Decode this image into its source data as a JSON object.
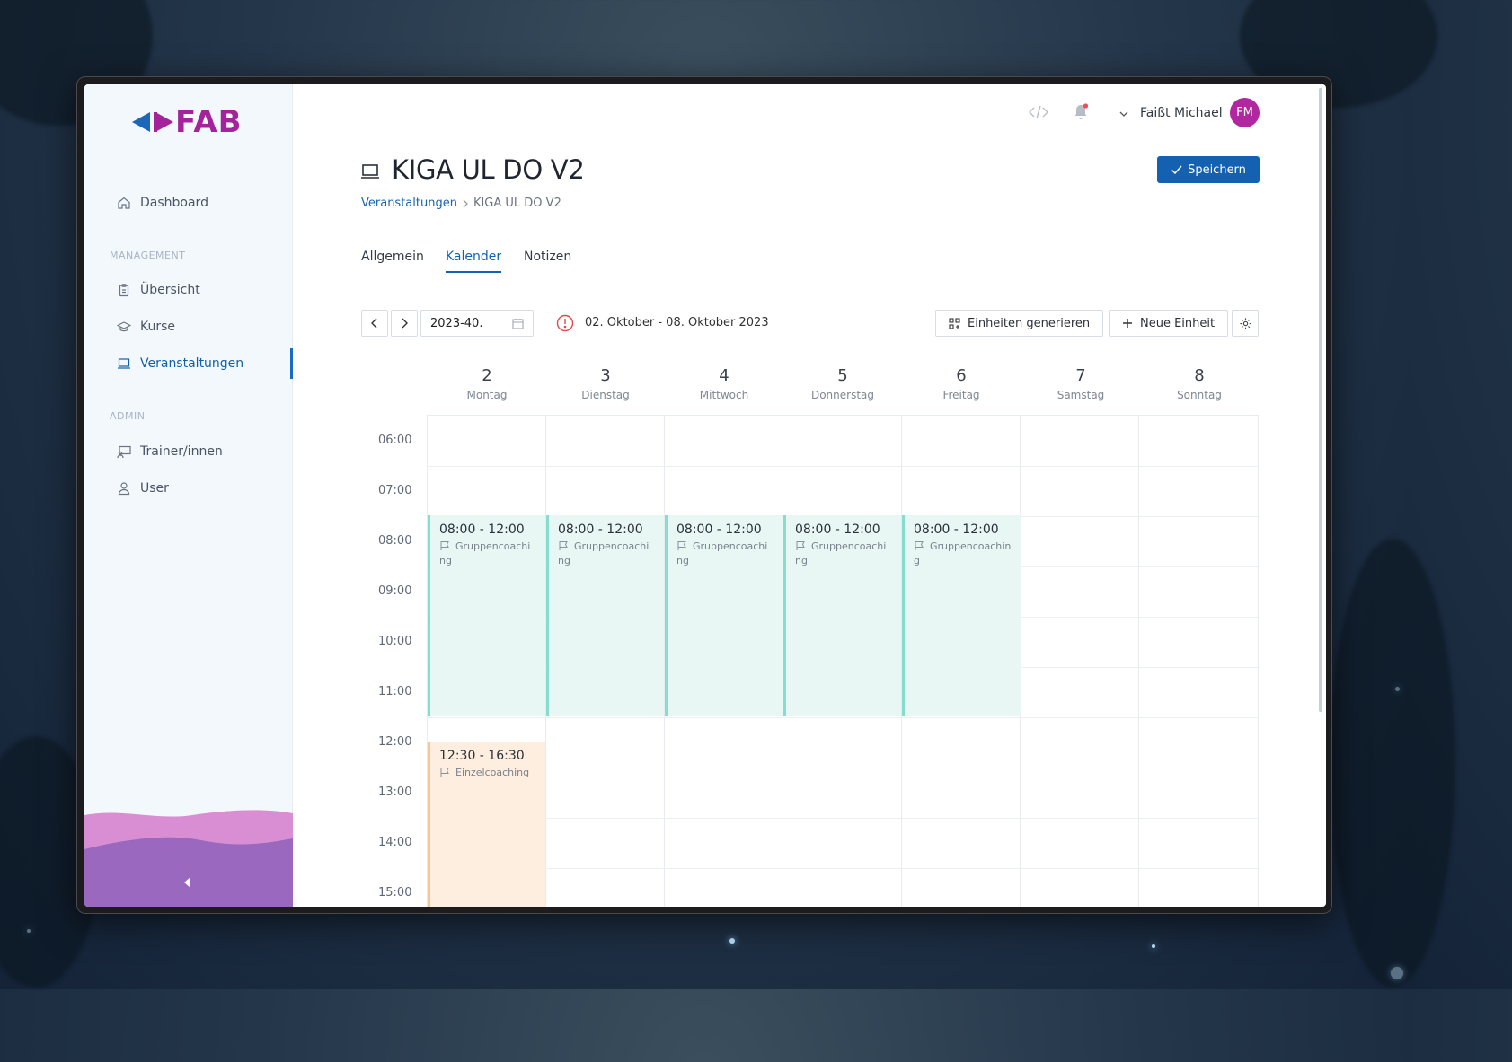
{
  "app": {
    "logo_text": "FAB",
    "brand_color": "#a3239a",
    "accent_color": "#1361b0"
  },
  "sidebar": {
    "dashboard": "Dashboard",
    "section_management": "MANAGEMENT",
    "items_management": [
      "Übersicht",
      "Kurse",
      "Veranstaltungen"
    ],
    "section_admin": "ADMIN",
    "items_admin": [
      "Trainer/innen",
      "User"
    ]
  },
  "header": {
    "user_name": "Faißt Michael",
    "avatar_initials": "FM",
    "save_label": "Speichern"
  },
  "page": {
    "title": "KIGA UL DO V2",
    "breadcrumb_link": "Veranstaltungen",
    "breadcrumb_current": "KIGA UL DO V2"
  },
  "tabs": [
    "Allgemein",
    "Kalender",
    "Notizen"
  ],
  "toolbar": {
    "week_value": "2023-40.",
    "date_range": "02. Oktober - 08. Oktober 2023",
    "generate_label": "Einheiten generieren",
    "new_label": "Neue Einheit"
  },
  "calendar": {
    "days": [
      {
        "num": "2",
        "name": "Montag"
      },
      {
        "num": "3",
        "name": "Dienstag"
      },
      {
        "num": "4",
        "name": "Mittwoch"
      },
      {
        "num": "5",
        "name": "Donnerstag"
      },
      {
        "num": "6",
        "name": "Freitag"
      },
      {
        "num": "7",
        "name": "Samstag"
      },
      {
        "num": "8",
        "name": "Sonntag"
      }
    ],
    "times": [
      "06:00",
      "07:00",
      "08:00",
      "09:00",
      "10:00",
      "11:00",
      "12:00",
      "13:00",
      "14:00",
      "15:00"
    ],
    "events": [
      {
        "time": "08:00 - 12:00",
        "type": "Gruppencoaching"
      },
      {
        "time": "08:00 - 12:00",
        "type": "Gruppencoaching"
      },
      {
        "time": "08:00 - 12:00",
        "type": "Gruppencoaching"
      },
      {
        "time": "08:00 - 12:00",
        "type": "Gruppencoaching"
      },
      {
        "time": "08:00 - 12:00",
        "type": "Gruppencoaching"
      },
      {
        "time": "12:30 - 16:30",
        "type": "Einzelcoaching"
      }
    ]
  }
}
